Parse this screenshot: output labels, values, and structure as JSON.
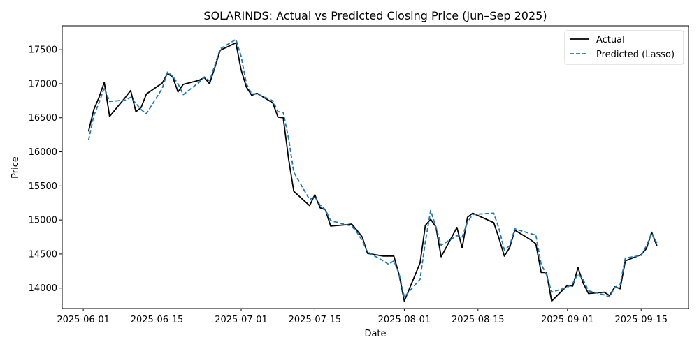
{
  "chart_data": {
    "type": "line",
    "title": "SOLARINDS: Actual vs Predicted Closing Price (Jun–Sep 2025)",
    "xlabel": "Date",
    "ylabel": "Price",
    "xlim": [
      "2025-05-28",
      "2025-09-24"
    ],
    "ylim": [
      13700,
      17850
    ],
    "x_ticks": [
      "2025-06-01",
      "2025-06-15",
      "2025-07-01",
      "2025-07-15",
      "2025-08-01",
      "2025-08-15",
      "2025-09-01",
      "2025-09-15"
    ],
    "y_ticks": [
      14000,
      14500,
      15000,
      15500,
      16000,
      16500,
      17000,
      17500
    ],
    "grid": false,
    "legend_position": "top-right",
    "series": [
      {
        "name": "Actual",
        "color": "#000000",
        "style": "solid",
        "points": [
          [
            "2025-06-02",
            16300
          ],
          [
            "2025-06-03",
            16620
          ],
          [
            "2025-06-04",
            16800
          ],
          [
            "2025-06-05",
            17020
          ],
          [
            "2025-06-06",
            16520
          ],
          [
            "2025-06-09",
            16800
          ],
          [
            "2025-06-10",
            16900
          ],
          [
            "2025-06-11",
            16590
          ],
          [
            "2025-06-12",
            16650
          ],
          [
            "2025-06-13",
            16850
          ],
          [
            "2025-06-16",
            17010
          ],
          [
            "2025-06-17",
            17150
          ],
          [
            "2025-06-18",
            17100
          ],
          [
            "2025-06-19",
            16880
          ],
          [
            "2025-06-20",
            16990
          ],
          [
            "2025-06-23",
            17050
          ],
          [
            "2025-06-24",
            17090
          ],
          [
            "2025-06-25",
            17000
          ],
          [
            "2025-06-26",
            17240
          ],
          [
            "2025-06-27",
            17490
          ],
          [
            "2025-06-30",
            17600
          ],
          [
            "2025-07-01",
            17200
          ],
          [
            "2025-07-02",
            16950
          ],
          [
            "2025-07-03",
            16830
          ],
          [
            "2025-07-04",
            16860
          ],
          [
            "2025-07-07",
            16720
          ],
          [
            "2025-07-08",
            16510
          ],
          [
            "2025-07-09",
            16500
          ],
          [
            "2025-07-10",
            15900
          ],
          [
            "2025-07-11",
            15420
          ],
          [
            "2025-07-14",
            15210
          ],
          [
            "2025-07-15",
            15370
          ],
          [
            "2025-07-16",
            15180
          ],
          [
            "2025-07-17",
            15150
          ],
          [
            "2025-07-18",
            14910
          ],
          [
            "2025-07-21",
            14930
          ],
          [
            "2025-07-22",
            14940
          ],
          [
            "2025-07-23",
            14850
          ],
          [
            "2025-07-24",
            14750
          ],
          [
            "2025-07-25",
            14510
          ],
          [
            "2025-07-28",
            14470
          ],
          [
            "2025-07-29",
            14470
          ],
          [
            "2025-07-30",
            14470
          ],
          [
            "2025-07-31",
            14200
          ],
          [
            "2025-08-01",
            13810
          ],
          [
            "2025-08-04",
            14370
          ],
          [
            "2025-08-05",
            14920
          ],
          [
            "2025-08-06",
            15010
          ],
          [
            "2025-08-07",
            14900
          ],
          [
            "2025-08-08",
            14460
          ],
          [
            "2025-08-11",
            14890
          ],
          [
            "2025-08-12",
            14590
          ],
          [
            "2025-08-13",
            15040
          ],
          [
            "2025-08-14",
            15100
          ],
          [
            "2025-08-18",
            14960
          ],
          [
            "2025-08-19",
            14730
          ],
          [
            "2025-08-20",
            14470
          ],
          [
            "2025-08-21",
            14590
          ],
          [
            "2025-08-22",
            14850
          ],
          [
            "2025-08-25",
            14710
          ],
          [
            "2025-08-26",
            14650
          ],
          [
            "2025-08-27",
            14230
          ],
          [
            "2025-08-28",
            14230
          ],
          [
            "2025-08-29",
            13810
          ],
          [
            "2025-09-01",
            14040
          ],
          [
            "2025-09-02",
            14030
          ],
          [
            "2025-09-03",
            14300
          ],
          [
            "2025-09-04",
            14070
          ],
          [
            "2025-09-05",
            13920
          ],
          [
            "2025-09-08",
            13940
          ],
          [
            "2025-09-09",
            13890
          ],
          [
            "2025-09-10",
            14020
          ],
          [
            "2025-09-11",
            13990
          ],
          [
            "2025-09-12",
            14400
          ],
          [
            "2025-09-15",
            14490
          ],
          [
            "2025-09-16",
            14580
          ],
          [
            "2025-09-17",
            14820
          ],
          [
            "2025-09-18",
            14620
          ]
        ]
      },
      {
        "name": "Predicted (Lasso)",
        "color": "#1f77b4",
        "style": "dashed",
        "points": [
          [
            "2025-06-02",
            16170
          ],
          [
            "2025-06-03",
            16530
          ],
          [
            "2025-06-04",
            16720
          ],
          [
            "2025-06-05",
            16940
          ],
          [
            "2025-06-06",
            16740
          ],
          [
            "2025-06-09",
            16760
          ],
          [
            "2025-06-10",
            16800
          ],
          [
            "2025-06-11",
            16710
          ],
          [
            "2025-06-12",
            16620
          ],
          [
            "2025-06-13",
            16560
          ],
          [
            "2025-06-16",
            16930
          ],
          [
            "2025-06-17",
            17170
          ],
          [
            "2025-06-18",
            17110
          ],
          [
            "2025-06-19",
            17000
          ],
          [
            "2025-06-20",
            16840
          ],
          [
            "2025-06-23",
            17020
          ],
          [
            "2025-06-24",
            17100
          ],
          [
            "2025-06-25",
            17040
          ],
          [
            "2025-06-26",
            17270
          ],
          [
            "2025-06-27",
            17510
          ],
          [
            "2025-06-30",
            17650
          ],
          [
            "2025-07-01",
            17400
          ],
          [
            "2025-07-02",
            17000
          ],
          [
            "2025-07-03",
            16850
          ],
          [
            "2025-07-04",
            16850
          ],
          [
            "2025-07-07",
            16750
          ],
          [
            "2025-07-08",
            16590
          ],
          [
            "2025-07-09",
            16580
          ],
          [
            "2025-07-10",
            16200
          ],
          [
            "2025-07-11",
            15700
          ],
          [
            "2025-07-14",
            15300
          ],
          [
            "2025-07-15",
            15340
          ],
          [
            "2025-07-16",
            15220
          ],
          [
            "2025-07-17",
            15150
          ],
          [
            "2025-07-18",
            14990
          ],
          [
            "2025-07-21",
            14930
          ],
          [
            "2025-07-22",
            14910
          ],
          [
            "2025-07-23",
            14820
          ],
          [
            "2025-07-24",
            14700
          ],
          [
            "2025-07-25",
            14530
          ],
          [
            "2025-07-28",
            14400
          ],
          [
            "2025-07-29",
            14350
          ],
          [
            "2025-07-30",
            14400
          ],
          [
            "2025-07-31",
            14210
          ],
          [
            "2025-08-01",
            13870
          ],
          [
            "2025-08-04",
            14130
          ],
          [
            "2025-08-05",
            14680
          ],
          [
            "2025-08-06",
            15140
          ],
          [
            "2025-08-07",
            14900
          ],
          [
            "2025-08-08",
            14630
          ],
          [
            "2025-08-11",
            14770
          ],
          [
            "2025-08-12",
            14750
          ],
          [
            "2025-08-13",
            14970
          ],
          [
            "2025-08-14",
            15080
          ],
          [
            "2025-08-18",
            15100
          ],
          [
            "2025-08-19",
            14870
          ],
          [
            "2025-08-20",
            14560
          ],
          [
            "2025-08-21",
            14620
          ],
          [
            "2025-08-22",
            14870
          ],
          [
            "2025-08-25",
            14800
          ],
          [
            "2025-08-26",
            14780
          ],
          [
            "2025-08-27",
            14350
          ],
          [
            "2025-08-28",
            14200
          ],
          [
            "2025-08-29",
            13940
          ],
          [
            "2025-09-01",
            14010
          ],
          [
            "2025-09-02",
            14070
          ],
          [
            "2025-09-03",
            14210
          ],
          [
            "2025-09-04",
            14120
          ],
          [
            "2025-09-05",
            13960
          ],
          [
            "2025-09-08",
            13900
          ],
          [
            "2025-09-09",
            13870
          ],
          [
            "2025-09-10",
            14010
          ],
          [
            "2025-09-11",
            14050
          ],
          [
            "2025-09-12",
            14440
          ],
          [
            "2025-09-15",
            14480
          ],
          [
            "2025-09-16",
            14620
          ],
          [
            "2025-09-17",
            14800
          ],
          [
            "2025-09-18",
            14660
          ]
        ]
      }
    ]
  }
}
